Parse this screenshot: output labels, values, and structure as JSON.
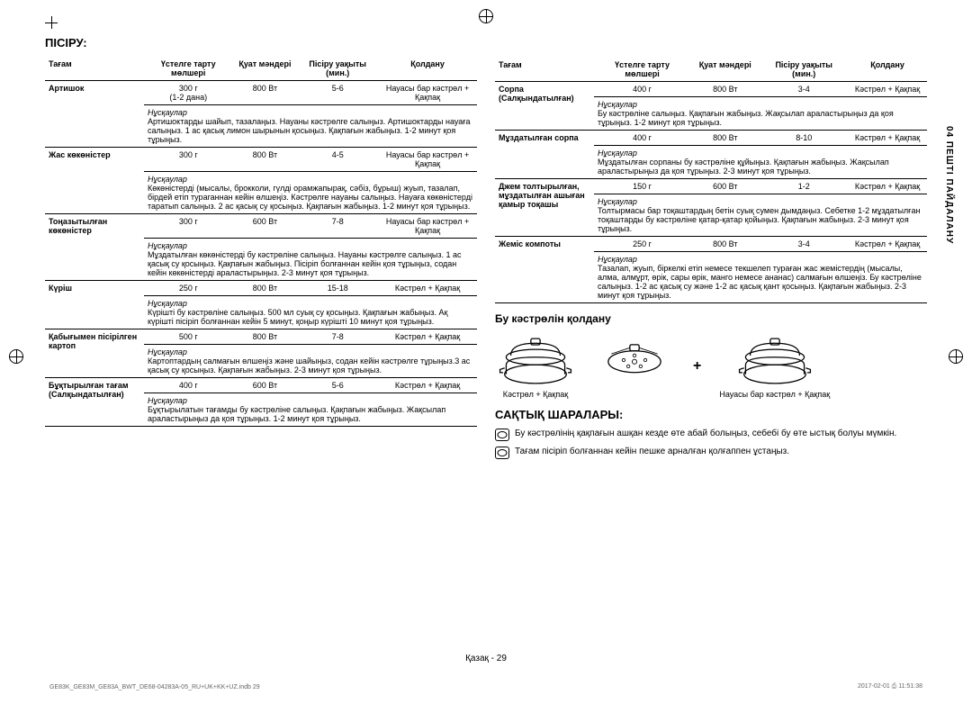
{
  "sideTab": "04  ПЕШТІ ПАЙДАЛАНУ",
  "title_cook": "ПІСІРУ:",
  "headers": {
    "food": "Тағам",
    "portion": "Үстелге тарту мөлшері",
    "power": "Қуат мәндері",
    "time": "Пісіру уақыты (мин.)",
    "use": "Қолдану"
  },
  "instr_label": "Нұсқаулар",
  "left_rows": [
    {
      "food": "Артишок",
      "portion": "300 г\n(1-2 дана)",
      "power": "800 Вт",
      "time": "5-6",
      "use": "Науасы бар кәстрөл + Қақпақ",
      "instr": "Артишоктарды шайып, тазалаңыз. Науаны кәстрөлге салыңыз. Артишоктарды науаға салыңыз. 1 ас қасық лимон шырынын қосыңыз. Қақпағын жабыңыз. 1-2 минут қоя тұрыңыз."
    },
    {
      "food": "Жас көкөністер",
      "portion": "300 г",
      "power": "800 Вт",
      "time": "4-5",
      "use": "Науасы бар кәстрөл + Қақпақ",
      "instr": "Көкөністерді (мысалы, брокколи, гүлді орамжапырақ, сәбіз, бұрыш) жуып, тазалап, бірдей етіп тураганнан кейін өлшеңіз. Кәстрөлге науаны салыңыз. Науаға көкөністерді таратып салыңыз. 2 ас қасық су қосыңыз. Қақпағын жабыңыз. 1-2 минут қоя тұрыңыз."
    },
    {
      "food": "Тоңазытылған көкөністер",
      "portion": "300 г",
      "power": "600 Вт",
      "time": "7-8",
      "use": "Науасы бар кәстрөл + Қақпақ",
      "instr": "Мұздатылған көкөністерді бу кәстрөліне салыңыз. Науаны кәстрөлге салыңыз. 1 ас қасық су қосыңыз. Қақпағын жабыңыз. Пісіріп болғаннан кейін қоя тұрыңыз, содан кейін көкөністерді араластырыңыз. 2-3 минут қоя тұрыңыз."
    },
    {
      "food": "Күріш",
      "portion": "250 г",
      "power": "800 Вт",
      "time": "15-18",
      "use": "Кәстрөл + Қақпақ",
      "instr": "Күрішті бу кәстрөліне салыңыз. 500 мл суық су қосыңыз. Қақпағын жабыңыз. Ақ күрішті пісіріп болғаннан кейін 5 минут, қоңыр күрішті 10 минут қоя тұрыңыз."
    },
    {
      "food": "Қабығымен пісірілген картоп",
      "portion": "500 г",
      "power": "800 Вт",
      "time": "7-8",
      "use": "Кәстрөл + Қақпақ",
      "instr": "Картоптардың салмағын өлшеңіз және шайыңыз, содан кейін кәстрөлге тұрыңыз.3 ас қасық су қосыңыз. Қақпағын жабыңыз. 2-3 минут қоя тұрыңыз."
    },
    {
      "food": "Бұқтырылған тағам (Салқындатылған)",
      "portion": "400 г",
      "power": "600 Вт",
      "time": "5-6",
      "use": "Кәстрөл + Қақпақ",
      "instr": "Бұқтырылатын тағамды бу кәстрөліне салыңыз. Қақпағын жабыңыз. Жақсылап араластырыңыз да қоя тұрыңыз. 1-2 минут қоя тұрыңыз."
    }
  ],
  "right_rows": [
    {
      "food": "Сорпа (Салқындатылған)",
      "portion": "400 г",
      "power": "800 Вт",
      "time": "3-4",
      "use": "Кәстрөл + Қақпақ",
      "instr": "Бу кәстрөліне салыңыз. Қақпағын жабыңыз. Жақсылап араластырыңыз да қоя тұрыңыз. 1-2 минут қоя тұрыңыз."
    },
    {
      "food": "Мұздатылған сорпа",
      "portion": "400 г",
      "power": "800 Вт",
      "time": "8-10",
      "use": "Кәстрөл + Қақпақ",
      "instr": "Мұздатылған сорпаны бу кәстрөліне құйыңыз. Қақпағын жабыңыз. Жақсылап араластырыңыз да қоя тұрыңыз. 2-3 минут қоя тұрыңыз."
    },
    {
      "food": "Джем толтырылған, мұздатылған ашыған қамыр тоқашы",
      "portion": "150 г",
      "power": "600 Вт",
      "time": "1-2",
      "use": "Кәстрөл + Қақпақ",
      "instr": "Толтырмасы бар тоқаштардың бетін суық сумен дымдаңыз. Себетке 1-2 мұздатылған тоқаштарды бу кәстрөліне қатар-қатар қойыңыз. Қақпағын жабыңыз. 2-3 минут қоя тұрыңыз."
    },
    {
      "food": "Жеміс компоты",
      "portion": "250 г",
      "power": "800 Вт",
      "time": "3-4",
      "use": "Кәстрөл + Қақпақ",
      "instr": "Тазалап, жуып, біркелкі етіп немесе текшелеп тураған жас жемістердің (мысалы, алма, алмұрт, өрік, сары өрік, манго немесе ананас) салмағын өлшеңіз. Бу кәстрөліне салыңыз. 1-2 ас қасық су және 1-2 ас қасық қант қосыңыз. Қақпағын жабыңыз. 2-3 минут қоя тұрыңыз."
    }
  ],
  "steam_title": "Бу кәстрөлін қолдану",
  "steamer1": "Кәстрөл + Қақпақ",
  "steamer2": "Науасы бар кәстрөл + Қақпақ",
  "caution_title": "САҚТЫҚ ШАРАЛАРЫ:",
  "cautions": [
    "Бу кәстрөлінің қақпағын ашқан кезде өте абай болыңыз, себебі бу өте ыстық болуы мүмкін.",
    "Тағам пісіріп болғаннан кейін пешке арналған қолғаппен ұстаңыз."
  ],
  "page_number": "Қазақ - 29",
  "footer_left": "GE83K_GE83M_GE83A_BWT_DE68-04283A-05_RU+UK+KK+UZ.indb   29",
  "footer_right": "2017-02-01   ⎙ 11:51:38"
}
